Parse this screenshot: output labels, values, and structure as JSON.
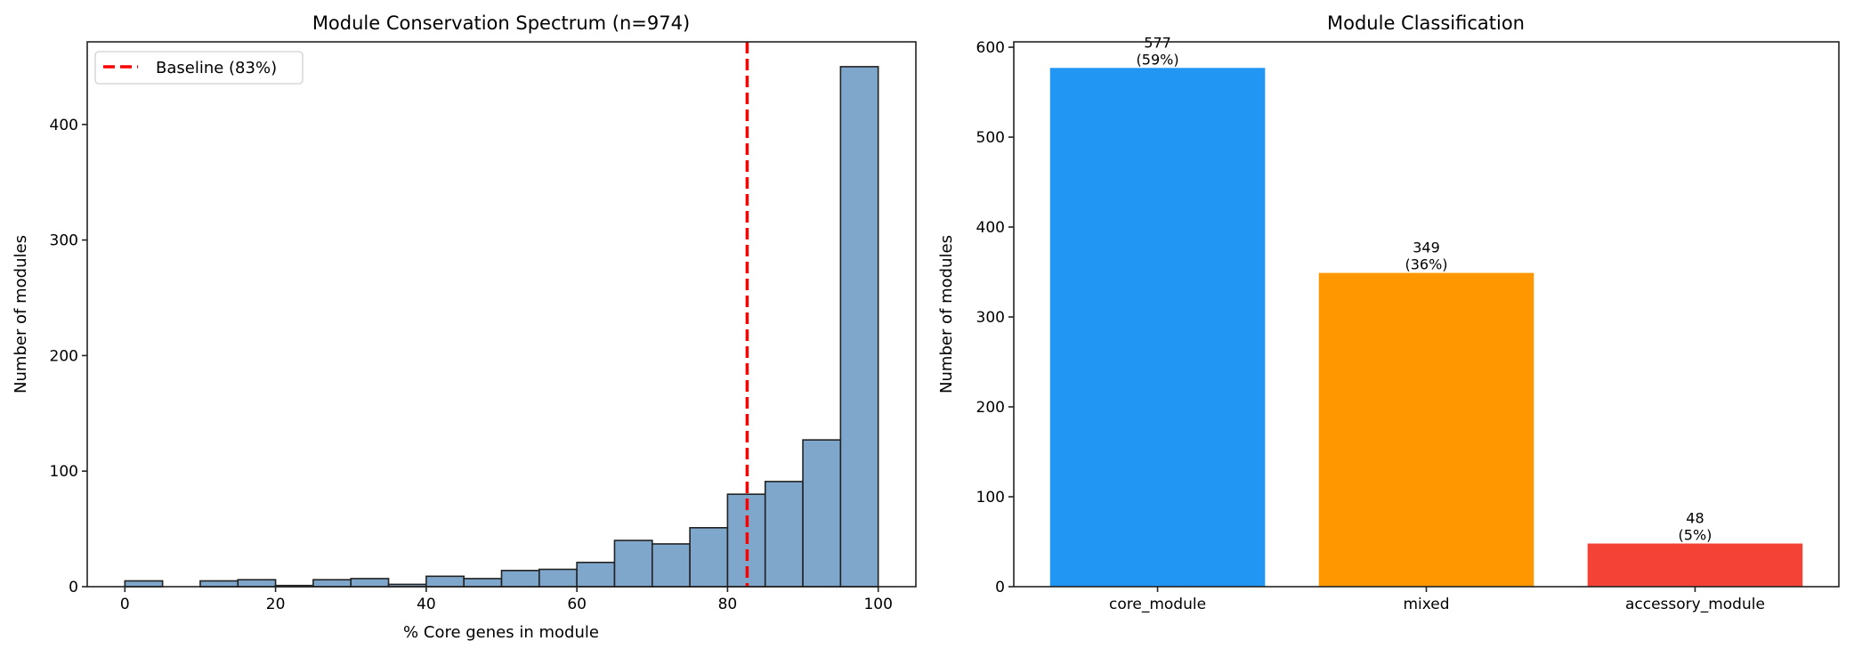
{
  "chart_data": [
    {
      "type": "bar",
      "subtype": "histogram",
      "title": "Module Conservation Spectrum (n=974)",
      "xlabel": "% Core genes in module",
      "ylabel": "Number of modules",
      "bin_edges": [
        0,
        5,
        10,
        15,
        20,
        25,
        30,
        35,
        40,
        45,
        50,
        55,
        60,
        65,
        70,
        75,
        80,
        85,
        90,
        95,
        100
      ],
      "values": [
        5,
        0,
        5,
        6,
        1,
        6,
        7,
        2,
        9,
        7,
        14,
        15,
        21,
        40,
        37,
        51,
        80,
        91,
        127,
        450
      ],
      "xlim": [
        -5,
        105
      ],
      "ylim": [
        0,
        471.5
      ],
      "xticks": [
        0,
        20,
        40,
        60,
        80,
        100
      ],
      "yticks": [
        0,
        100,
        200,
        300,
        400
      ],
      "bar_color": "#7fa7cb",
      "edge_color": "#222222",
      "reference_line": {
        "x": 82.6,
        "label": "Baseline (83%)",
        "color": "#ff0000",
        "style": "dashed"
      },
      "legend": {
        "position": "top-left",
        "entries": [
          "Baseline (83%)"
        ]
      },
      "grid": false
    },
    {
      "type": "bar",
      "title": "Module Classification",
      "xlabel": "",
      "ylabel": "Number of modules",
      "categories": [
        "core_module",
        "mixed",
        "accessory_module"
      ],
      "values": [
        577,
        349,
        48
      ],
      "data_labels": [
        [
          "577",
          "(59%)"
        ],
        [
          "349",
          "(36%)"
        ],
        [
          "48",
          "(5%)"
        ]
      ],
      "colors": [
        "#2196f3",
        "#ff9800",
        "#f44336"
      ],
      "ylim": [
        0,
        606
      ],
      "yticks": [
        0,
        100,
        200,
        300,
        400,
        500,
        600
      ],
      "grid": false
    }
  ]
}
